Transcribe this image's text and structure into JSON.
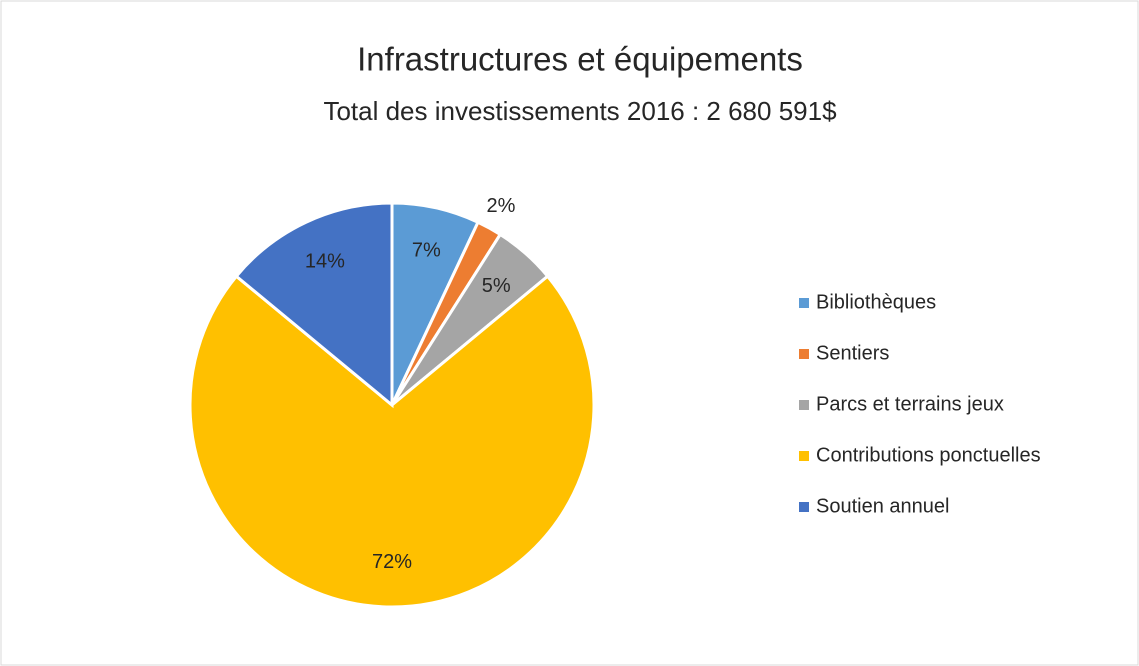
{
  "chart_data": {
    "type": "pie",
    "title": "Infrastructures et équipements",
    "subtitle": "Total des investissements 2016 : 2 680 591$",
    "categories": [
      "Bibliothèques",
      "Sentiers",
      "Parcs et terrains jeux",
      "Contributions ponctuelles",
      "Soutien annuel"
    ],
    "values": [
      7,
      2,
      5,
      72,
      14
    ],
    "value_labels": [
      "7%",
      "2%",
      "5%",
      "72%",
      "14%"
    ],
    "colors": [
      "#5b9bd5",
      "#ed7d31",
      "#a5a5a5",
      "#ffc000",
      "#4472c4"
    ],
    "legend": "right"
  }
}
